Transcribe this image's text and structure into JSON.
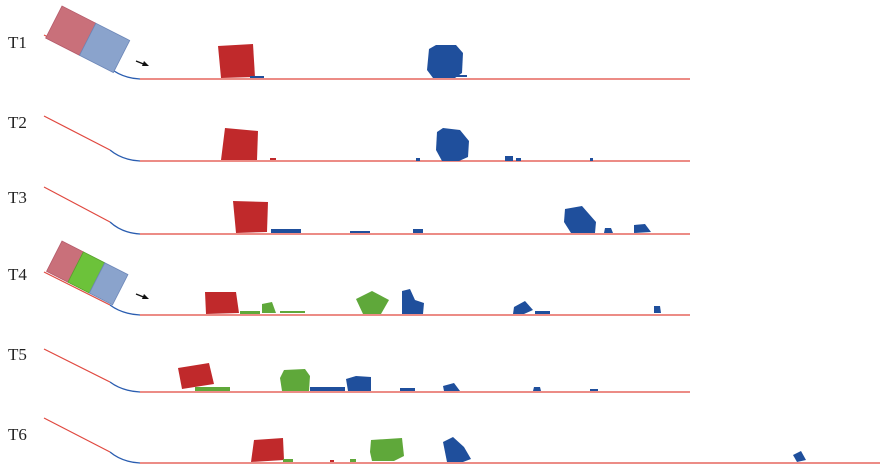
{
  "rows": [
    {
      "label": "T1"
    },
    {
      "label": "T2"
    },
    {
      "label": "T3"
    },
    {
      "label": "T4"
    },
    {
      "label": "T5"
    },
    {
      "label": "T6"
    }
  ],
  "colors": {
    "red_block": "#c0292b",
    "blue_block": "#1f4f9c",
    "green_block": "#5fa83a",
    "slope_line": "#e0483f",
    "curve_line": "#2a5db0",
    "start_red": "#c9707a",
    "start_blue": "#8aa3cc",
    "start_green": "#6cc23a"
  }
}
